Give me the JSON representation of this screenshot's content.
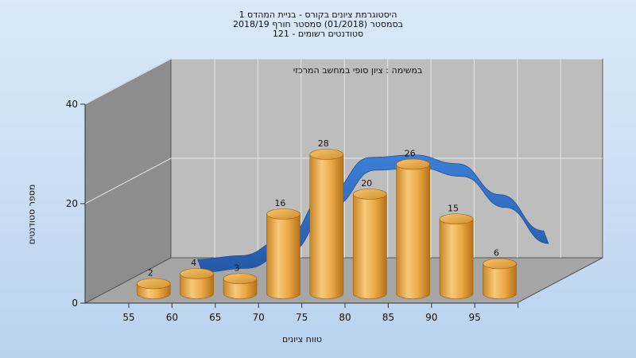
{
  "chart_data": {
    "type": "bar",
    "title_lines": [
      "היסטוגרמת ציונים בקורס - בניית המהדס 1",
      "בסמסטר  (01/2018)  סמסטר חורף 2018/19",
      "סטודנטים רשומים - 121"
    ],
    "subtitle": "במשימה : ציון סופי במחשב המרכזי",
    "xlabel": "טווח ציונים",
    "ylabel": "מספר סטודנטים",
    "categories": [
      "55",
      "60",
      "65",
      "70",
      "75",
      "80",
      "85",
      "90",
      "95"
    ],
    "values": [
      2,
      4,
      3,
      16,
      28,
      20,
      26,
      15,
      6
    ],
    "y_ticks": [
      "0",
      "20",
      "40"
    ],
    "ylim": [
      0,
      40
    ],
    "grid": true,
    "bar_color": "#e9a43b",
    "curve_color": "#2f6dc4",
    "wall_color": "#8d8d8d",
    "back_wall_color": "#bdbdbd",
    "floor_color": "#a6a6a6"
  }
}
